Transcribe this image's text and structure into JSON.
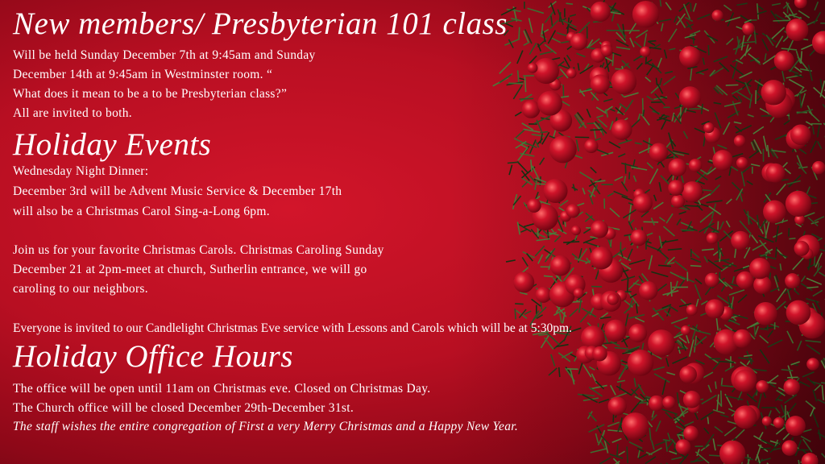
{
  "sections": [
    {
      "heading": "New members/ Presbyterian 101 class",
      "lines": [
        "Will be held Sunday December 7th at 9:45am and Sunday",
        "December 14th at 9:45am in Westminster room. “",
        "What does it mean to be a to be Presbyterian class?”",
        "All are invited to both."
      ]
    },
    {
      "heading": "Holiday Events",
      "lines": [
        "Wednesday Night Dinner:",
        "December 3rd will be Advent Music Service & December 17th",
        "will also be a Christmas Carol Sing-a-Long 6pm.",
        "Join us for your favorite Christmas Carols. Christmas Caroling Sunday",
        "December 21 at 2pm-meet at church, Sutherlin entrance, we will go",
        "caroling to our neighbors.",
        "Everyone is invited to our Candlelight Christmas Eve service with Lessons and Carols which will be at 5:30pm."
      ]
    },
    {
      "heading": "Holiday Office Hours",
      "lines": [
        "The office will be open until 11am on Christmas eve. Closed on Christmas Day.",
        "The Church office will be closed December 29th-December 31st.",
        "The staff wishes the entire congregation of First a very Merry Christmas and a Happy New Year."
      ]
    }
  ],
  "colors": {
    "background": "#b80f22",
    "berry": "#c8102e",
    "pine": "#1f3d1a"
  }
}
